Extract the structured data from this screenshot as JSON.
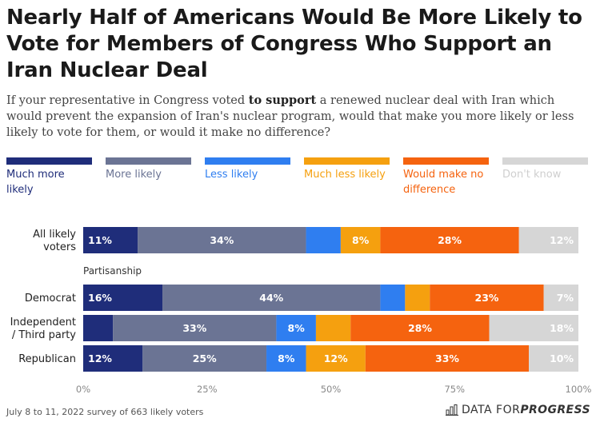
{
  "header": {
    "title": "Nearly Half of Americans Would Be More Likely to Vote for Members of Congress Who Support an Iran Nuclear Deal",
    "subtitle_before": "If your representative in Congress voted ",
    "subtitle_bold": "to support",
    "subtitle_after": " a renewed nuclear deal with Iran which would prevent the expansion of Iran's nuclear program, would that make you more likely or less likely to vote for them, or would it make no difference?"
  },
  "chart_data": {
    "type": "bar",
    "orientation": "horizontal-stacked",
    "categories": [
      "All likely voters",
      "Democrat",
      "Independent / Third party",
      "Republican"
    ],
    "category_labels": [
      [
        "All likely",
        "voters"
      ],
      [
        "Democrat"
      ],
      [
        "Independent",
        "/ Third party"
      ],
      [
        "Republican"
      ]
    ],
    "section_label": "Partisanship",
    "series": [
      {
        "name": "Much more likely",
        "color": "#1f2d7a",
        "values": [
          11,
          16,
          6,
          12
        ],
        "labels": [
          "11%",
          "16%",
          "",
          "12%"
        ]
      },
      {
        "name": "More likely",
        "color": "#6b7494",
        "values": [
          34,
          44,
          33,
          25
        ],
        "labels": [
          "34%",
          "44%",
          "33%",
          "25%"
        ]
      },
      {
        "name": "Less likely",
        "color": "#2f7ef0",
        "values": [
          7,
          5,
          8,
          8
        ],
        "labels": [
          "",
          "",
          "8%",
          "8%"
        ]
      },
      {
        "name": "Much less likely",
        "color": "#f5a00f",
        "values": [
          8,
          5,
          7,
          12
        ],
        "labels": [
          "8%",
          "",
          "",
          "12%"
        ]
      },
      {
        "name": "Would make no difference",
        "color": "#f5630f",
        "values": [
          28,
          23,
          28,
          33
        ],
        "labels": [
          "28%",
          "23%",
          "28%",
          "33%"
        ]
      },
      {
        "name": "Don't know",
        "color": "#d6d6d6",
        "values": [
          12,
          7,
          18,
          10
        ],
        "labels": [
          "12%",
          "7%",
          "18%",
          "10%"
        ]
      }
    ],
    "xlim": [
      0,
      100
    ],
    "xticks": [
      "0%",
      "25%",
      "50%",
      "75%",
      "100%"
    ],
    "legend_position": "top"
  },
  "footer": {
    "note": "July 8 to 11, 2022 survey of 663 likely voters",
    "brand_prefix": "DATA FOR ",
    "brand_bold": "PROGRESS"
  }
}
